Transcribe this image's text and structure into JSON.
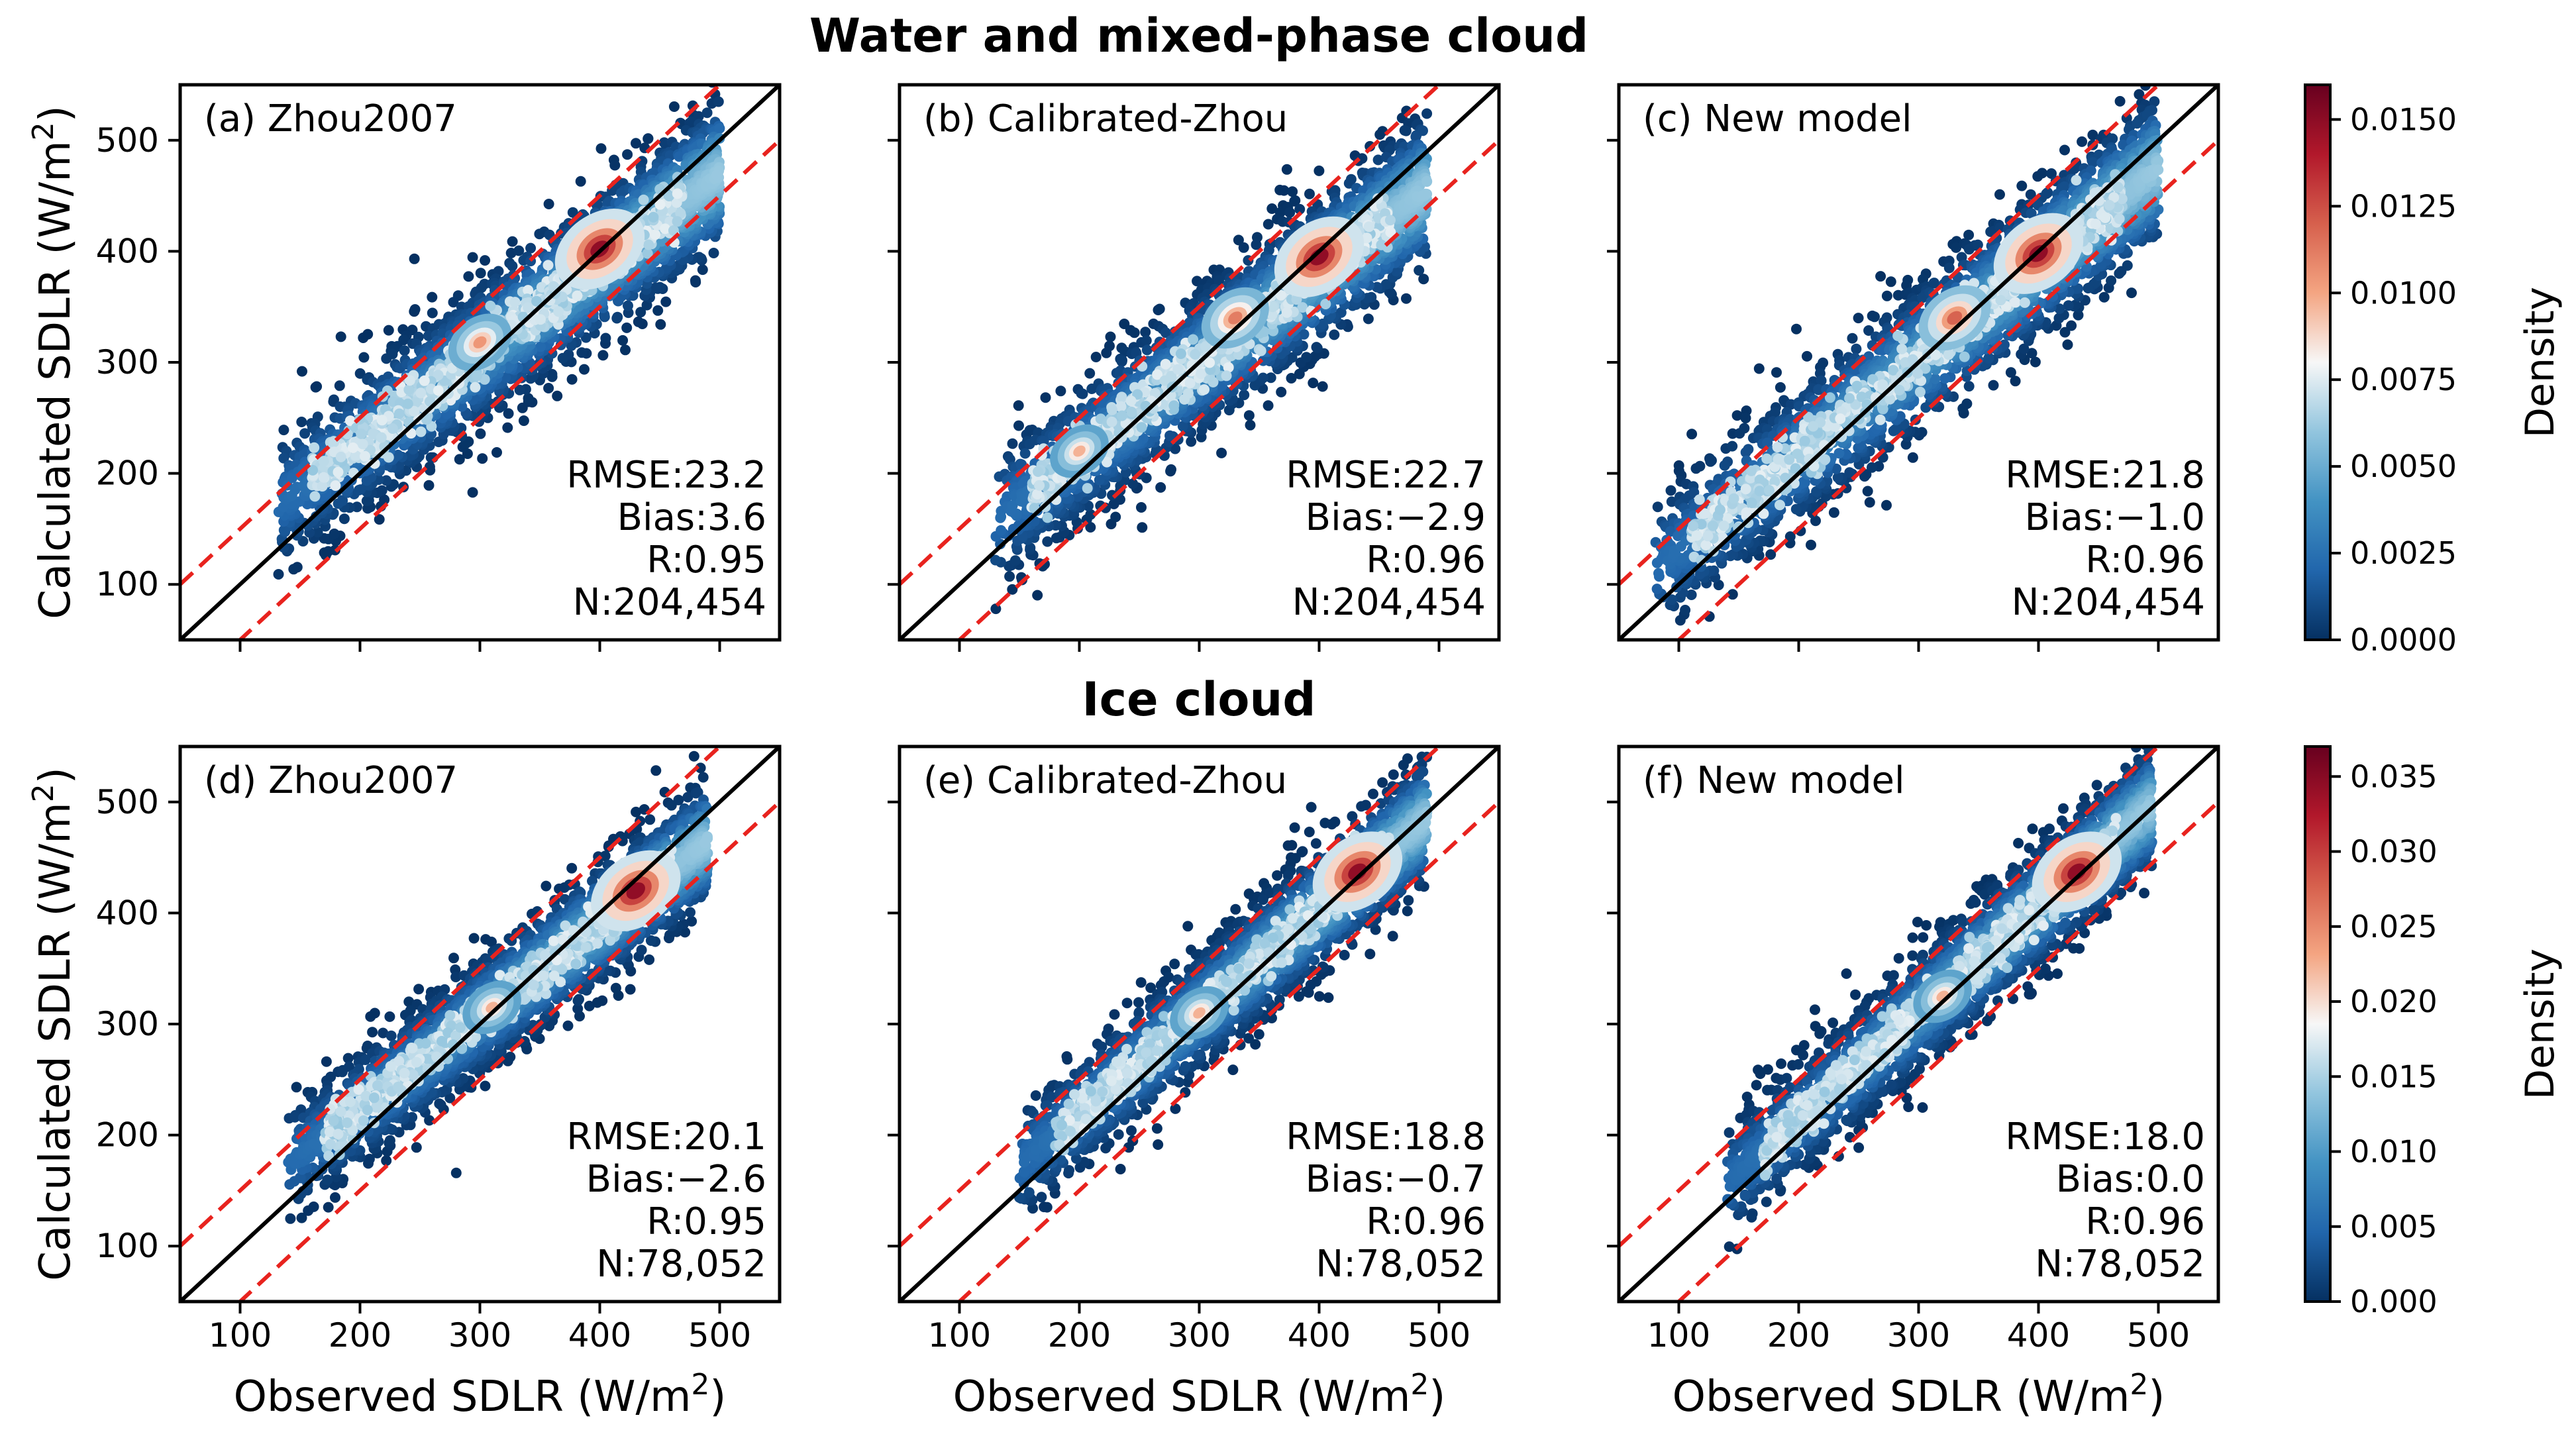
{
  "figure": {
    "row_titles": [
      "Water and mixed-phase cloud",
      "Ice cloud"
    ],
    "xlabel": "Observed SDLR (W/m",
    "ylabel": "Calculated SDLR (W/m",
    "unit_superscript": "2",
    "label_close": ")"
  },
  "chart_data": [
    {
      "type": "scatter",
      "row": 0,
      "panel_label": "(a) Zhou2007",
      "xlim": [
        50,
        550
      ],
      "ylim": [
        50,
        550
      ],
      "xticks": [
        100,
        200,
        300,
        400,
        500
      ],
      "yticks": [
        100,
        200,
        300,
        400,
        500
      ],
      "one_to_one": [
        [
          50,
          50
        ],
        [
          550,
          550
        ]
      ],
      "bounds_offset": 50,
      "cloud": {
        "x_range": [
          130,
          500
        ],
        "center_slope": 0.81,
        "center_intercept": 65,
        "width": 32,
        "peaks": [
          [
            400,
            402,
            1.0
          ],
          [
            300,
            318,
            0.4
          ]
        ]
      },
      "stats": [
        "RMSE:23.2",
        "Bias:3.6",
        "R:0.95",
        "N:204,454"
      ]
    },
    {
      "type": "scatter",
      "row": 0,
      "panel_label": "(b) Calibrated-Zhou",
      "xlim": [
        50,
        550
      ],
      "ylim": [
        50,
        550
      ],
      "xticks": [
        100,
        200,
        300,
        400,
        500
      ],
      "yticks": [
        100,
        200,
        300,
        400,
        500
      ],
      "one_to_one": [
        [
          50,
          50
        ],
        [
          550,
          550
        ]
      ],
      "bounds_offset": 50,
      "cloud": {
        "x_range": [
          130,
          490
        ],
        "center_slope": 0.83,
        "center_intercept": 50,
        "width": 32,
        "peaks": [
          [
            400,
            395,
            1.0
          ],
          [
            330,
            340,
            0.5
          ],
          [
            200,
            220,
            0.3
          ]
        ]
      },
      "stats": [
        "RMSE:22.7",
        "Bias:−2.9",
        "R:0.96",
        "N:204,454"
      ]
    },
    {
      "type": "scatter",
      "row": 0,
      "panel_label": "(c) New model",
      "xlim": [
        50,
        550
      ],
      "ylim": [
        50,
        550
      ],
      "xticks": [
        100,
        200,
        300,
        400,
        500
      ],
      "yticks": [
        100,
        200,
        300,
        400,
        500
      ],
      "one_to_one": [
        [
          50,
          50
        ],
        [
          550,
          550
        ]
      ],
      "bounds_offset": 50,
      "cloud": {
        "x_range": [
          80,
          500
        ],
        "center_slope": 0.86,
        "center_intercept": 45,
        "width": 32,
        "peaks": [
          [
            400,
            398,
            1.0
          ],
          [
            330,
            340,
            0.6
          ]
        ]
      },
      "stats": [
        "RMSE:21.8",
        "Bias:−1.0",
        "R:0.96",
        "N:204,454"
      ]
    },
    {
      "type": "scatter",
      "row": 1,
      "panel_label": "(d) Zhou2007",
      "xlim": [
        50,
        550
      ],
      "ylim": [
        50,
        550
      ],
      "xticks": [
        100,
        200,
        300,
        400,
        500
      ],
      "yticks": [
        100,
        200,
        300,
        400,
        500
      ],
      "one_to_one": [
        [
          50,
          50
        ],
        [
          550,
          550
        ]
      ],
      "bounds_offset": 50,
      "cloud": {
        "x_range": [
          140,
          490
        ],
        "center_slope": 0.83,
        "center_intercept": 58,
        "width": 26,
        "peaks": [
          [
            430,
            420,
            1.0
          ],
          [
            310,
            315,
            0.3
          ]
        ]
      },
      "stats": [
        "RMSE:20.1",
        "Bias:−2.6",
        "R:0.95",
        "N:78,052"
      ]
    },
    {
      "type": "scatter",
      "row": 1,
      "panel_label": "(e) Calibrated-Zhou",
      "xlim": [
        50,
        550
      ],
      "ylim": [
        50,
        550
      ],
      "xticks": [
        100,
        200,
        300,
        400,
        500
      ],
      "yticks": [
        100,
        200,
        300,
        400,
        500
      ],
      "one_to_one": [
        [
          50,
          50
        ],
        [
          550,
          550
        ]
      ],
      "bounds_offset": 50,
      "cloud": {
        "x_range": [
          150,
          490
        ],
        "center_slope": 0.92,
        "center_intercept": 35,
        "width": 26,
        "peaks": [
          [
            432,
            437,
            1.0
          ],
          [
            300,
            310,
            0.3
          ]
        ]
      },
      "stats": [
        "RMSE:18.8",
        "Bias:−0.7",
        "R:0.96",
        "N:78,052"
      ]
    },
    {
      "type": "scatter",
      "row": 1,
      "panel_label": "(f) New model",
      "xlim": [
        50,
        550
      ],
      "ylim": [
        50,
        550
      ],
      "xticks": [
        100,
        200,
        300,
        400,
        500
      ],
      "yticks": [
        100,
        200,
        300,
        400,
        500
      ],
      "one_to_one": [
        [
          50,
          50
        ],
        [
          550,
          550
        ]
      ],
      "bounds_offset": 50,
      "cloud": {
        "x_range": [
          140,
          495
        ],
        "center_slope": 0.96,
        "center_intercept": 22,
        "width": 26,
        "peaks": [
          [
            432,
            437,
            1.0
          ],
          [
            320,
            325,
            0.3
          ]
        ]
      },
      "stats": [
        "RMSE:18.0",
        "Bias:0.0",
        "R:0.96",
        "N:78,052"
      ]
    }
  ],
  "colorbars": [
    {
      "row": 0,
      "label": "Density",
      "range": [
        0.0,
        0.016
      ],
      "ticks": [
        "0.0000",
        "0.0025",
        "0.0050",
        "0.0075",
        "0.0100",
        "0.0125",
        "0.0150"
      ],
      "tick_values": [
        0.0,
        0.0025,
        0.005,
        0.0075,
        0.01,
        0.0125,
        0.015
      ]
    },
    {
      "row": 1,
      "label": "Density",
      "range": [
        0.0,
        0.037
      ],
      "ticks": [
        "0.000",
        "0.005",
        "0.010",
        "0.015",
        "0.020",
        "0.025",
        "0.030",
        "0.035"
      ],
      "tick_values": [
        0.0,
        0.005,
        0.01,
        0.015,
        0.02,
        0.025,
        0.03,
        0.035
      ]
    }
  ],
  "colors": {
    "one_to_one_line": "#000000",
    "bounds_line": "#e8231e",
    "colormap": [
      "#053061",
      "#2166ac",
      "#4393c3",
      "#92c5de",
      "#f7f7f7",
      "#f4a582",
      "#d6604d",
      "#b2182b",
      "#67001f"
    ]
  }
}
